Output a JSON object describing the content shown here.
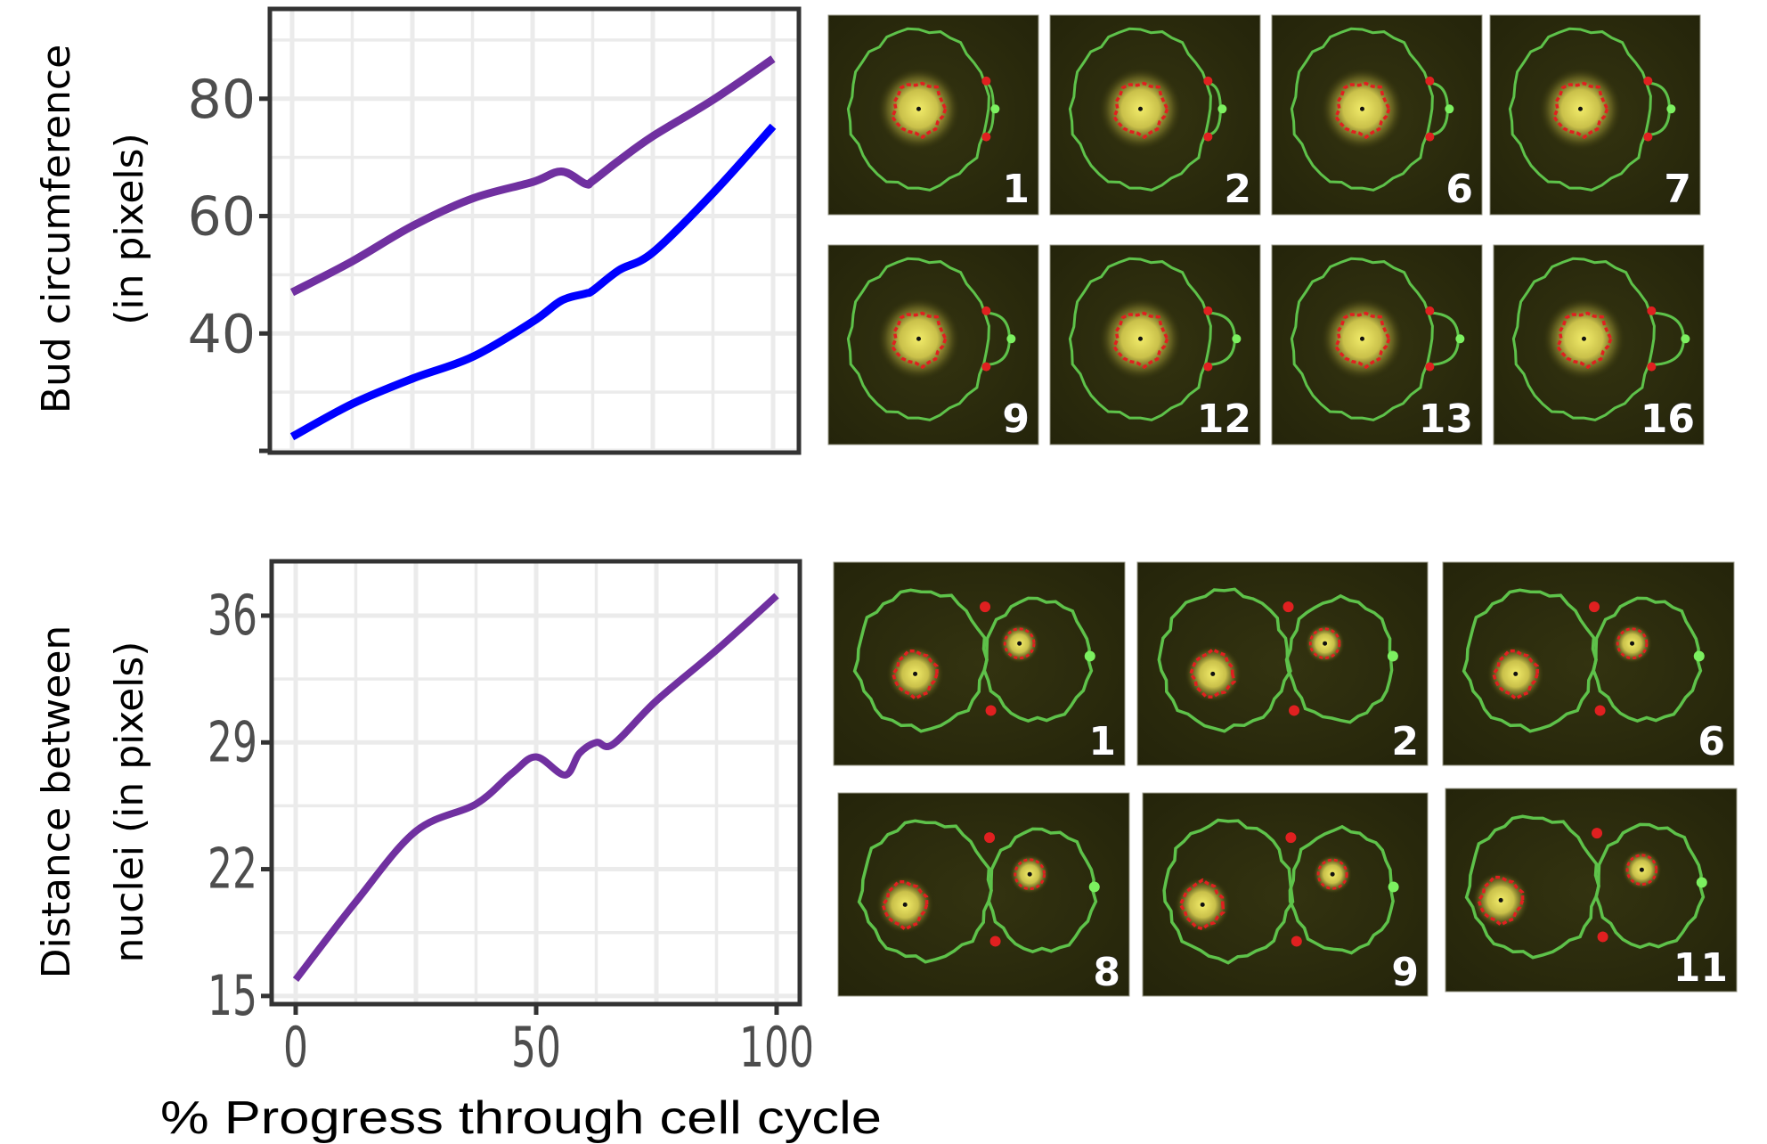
{
  "chart_data": [
    {
      "type": "line",
      "title": "",
      "xlabel": "",
      "ylabel_lines": [
        "Bud circumference",
        "(in pixels)"
      ],
      "xlim": [
        0,
        100
      ],
      "ylim": [
        19.7,
        95.3
      ],
      "yticks": [
        20,
        40,
        60,
        80
      ],
      "ytick_labels": [
        "",
        "40",
        "60",
        "80"
      ],
      "xticks": [
        0,
        50,
        100
      ],
      "xtick_labels": [],
      "grid": true,
      "legend": "none",
      "x": [
        0,
        12.5,
        25,
        37.5,
        50,
        56,
        61,
        62.5,
        68,
        75,
        87.5,
        100
      ],
      "series": [
        {
          "name": "purple",
          "color": "#7030a0",
          "values": [
            47.0,
            52.3,
            58.3,
            63.0,
            65.8,
            67.6,
            65.5,
            66.0,
            69.5,
            73.6,
            79.8,
            86.8
          ]
        },
        {
          "name": "blue",
          "color": "#0000ff",
          "values": [
            22.4,
            28.0,
            32.3,
            36.0,
            42.0,
            45.6,
            46.8,
            47.3,
            50.8,
            53.8,
            63.9,
            75.3
          ]
        }
      ]
    },
    {
      "type": "line",
      "title": "",
      "xlabel": "% Progress through cell cycle",
      "ylabel_lines": [
        "Distance between",
        "nuclei (in pixels)"
      ],
      "xlim": [
        0,
        100
      ],
      "ylim": [
        14.55,
        39.0
      ],
      "yticks": [
        15,
        22,
        29,
        36
      ],
      "ytick_labels": [
        "15",
        "22",
        "29",
        "36"
      ],
      "xticks": [
        0,
        50,
        100
      ],
      "xtick_labels": [
        "0",
        "50",
        "100"
      ],
      "grid": true,
      "legend": "none",
      "x": [
        0,
        12.5,
        25,
        37.5,
        45,
        50,
        56,
        59,
        62.5,
        66,
        75,
        87.5,
        100
      ],
      "series": [
        {
          "name": "purple",
          "color": "#7030a0",
          "values": [
            15.9,
            20.2,
            24.1,
            25.6,
            27.3,
            28.2,
            27.2,
            28.4,
            29.0,
            28.9,
            31.3,
            34.1,
            37.1
          ]
        }
      ]
    }
  ],
  "panels": {
    "bud_frames": [
      "1",
      "2",
      "6",
      "7",
      "9",
      "12",
      "13",
      "16"
    ],
    "division_frames": [
      "1",
      "2",
      "6",
      "8",
      "9",
      "11"
    ]
  },
  "colors": {
    "purple": "#7030a0",
    "blue": "#0000ff",
    "grid": "#ebebeb",
    "axis": "#333333",
    "panel_bg": "#2a2a08",
    "outline": "#5ec24a",
    "marker_red": "#e02020"
  }
}
